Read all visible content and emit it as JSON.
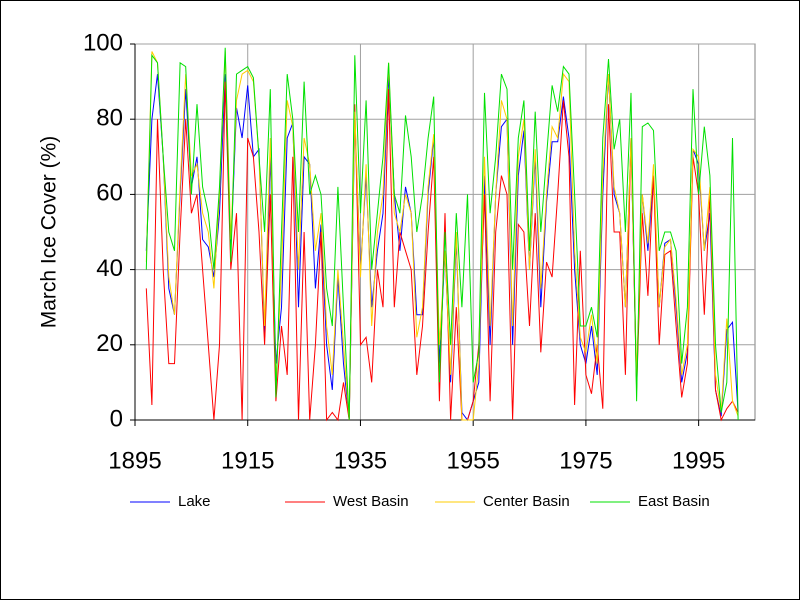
{
  "chart_data": {
    "type": "line",
    "y_label": "March Ice Cover (%)",
    "x": [
      1897,
      1898,
      1899,
      1900,
      1901,
      1902,
      1903,
      1904,
      1905,
      1906,
      1907,
      1908,
      1909,
      1910,
      1911,
      1912,
      1913,
      1914,
      1915,
      1916,
      1917,
      1918,
      1919,
      1920,
      1921,
      1922,
      1923,
      1924,
      1925,
      1926,
      1927,
      1928,
      1929,
      1930,
      1931,
      1932,
      1933,
      1934,
      1935,
      1936,
      1937,
      1938,
      1939,
      1940,
      1941,
      1942,
      1943,
      1944,
      1945,
      1946,
      1947,
      1948,
      1949,
      1950,
      1951,
      1952,
      1953,
      1954,
      1955,
      1956,
      1957,
      1958,
      1959,
      1960,
      1961,
      1962,
      1963,
      1964,
      1965,
      1966,
      1967,
      1968,
      1969,
      1970,
      1971,
      1972,
      1973,
      1974,
      1975,
      1976,
      1977,
      1978,
      1979,
      1980,
      1981,
      1982,
      1983,
      1984,
      1985,
      1986,
      1987,
      1988,
      1989,
      1990,
      1991,
      1992,
      1993,
      1994,
      1995,
      1996,
      1997,
      1998,
      1999,
      2000,
      2001,
      2002
    ],
    "series": [
      {
        "name": "Lake",
        "color": "#0000ff",
        "values": [
          45,
          80,
          92,
          70,
          35,
          28,
          60,
          88,
          62,
          70,
          48,
          46,
          38,
          55,
          92,
          45,
          83,
          75,
          89,
          70,
          72,
          22,
          70,
          15,
          30,
          75,
          79,
          30,
          70,
          68,
          35,
          52,
          20,
          8,
          38,
          15,
          0,
          80,
          40,
          65,
          30,
          45,
          55,
          92,
          60,
          45,
          62,
          55,
          28,
          28,
          60,
          75,
          15,
          45,
          10,
          48,
          2,
          0,
          5,
          10,
          65,
          20,
          60,
          78,
          80,
          20,
          65,
          77,
          40,
          70,
          30,
          58,
          74,
          74,
          86,
          75,
          40,
          20,
          15,
          25,
          12,
          60,
          92,
          60,
          55,
          30,
          75,
          10,
          60,
          45,
          65,
          30,
          47,
          48,
          30,
          10,
          18,
          72,
          68,
          45,
          55,
          8,
          1,
          24,
          26,
          2
        ]
      },
      {
        "name": "West Basin",
        "color": "#ff0000",
        "values": [
          35,
          4,
          80,
          40,
          15,
          15,
          50,
          80,
          55,
          60,
          40,
          20,
          0,
          20,
          90,
          40,
          55,
          0,
          75,
          70,
          50,
          20,
          60,
          5,
          25,
          12,
          70,
          0,
          50,
          0,
          20,
          50,
          0,
          2,
          0,
          10,
          0,
          84,
          20,
          22,
          10,
          40,
          30,
          88,
          30,
          50,
          45,
          40,
          12,
          25,
          50,
          70,
          5,
          55,
          0,
          30,
          0,
          0,
          5,
          20,
          60,
          5,
          50,
          65,
          60,
          0,
          52,
          50,
          25,
          55,
          18,
          42,
          38,
          60,
          85,
          70,
          4,
          45,
          12,
          7,
          20,
          3,
          84,
          50,
          50,
          12,
          75,
          8,
          55,
          33,
          65,
          20,
          44,
          45,
          25,
          6,
          15,
          70,
          60,
          28,
          60,
          8,
          0,
          3,
          5,
          2
        ]
      },
      {
        "name": "Center Basin",
        "color": "#ffcc00",
        "values": [
          42,
          98,
          95,
          70,
          38,
          28,
          62,
          92,
          65,
          68,
          55,
          50,
          35,
          60,
          98,
          48,
          85,
          92,
          93,
          90,
          70,
          25,
          75,
          10,
          40,
          85,
          78,
          40,
          75,
          68,
          45,
          55,
          25,
          12,
          40,
          20,
          0,
          82,
          38,
          68,
          25,
          50,
          60,
          95,
          55,
          50,
          60,
          55,
          22,
          30,
          62,
          76,
          20,
          45,
          12,
          50,
          0,
          0,
          0,
          15,
          70,
          25,
          60,
          85,
          80,
          25,
          70,
          80,
          40,
          72,
          35,
          60,
          78,
          75,
          92,
          90,
          45,
          22,
          18,
          28,
          15,
          65,
          92,
          62,
          55,
          30,
          75,
          12,
          60,
          47,
          68,
          30,
          46,
          48,
          32,
          12,
          20,
          72,
          70,
          45,
          62,
          12,
          2,
          27,
          5,
          1
        ]
      },
      {
        "name": "East Basin",
        "color": "#00e000",
        "values": [
          40,
          97,
          95,
          70,
          50,
          45,
          95,
          94,
          60,
          84,
          62,
          55,
          40,
          62,
          99,
          42,
          92,
          93,
          94,
          91,
          70,
          50,
          88,
          6,
          50,
          92,
          80,
          50,
          90,
          60,
          65,
          60,
          35,
          25,
          62,
          30,
          0,
          97,
          55,
          85,
          40,
          55,
          70,
          95,
          60,
          55,
          81,
          70,
          50,
          60,
          75,
          86,
          10,
          50,
          20,
          55,
          30,
          60,
          10,
          18,
          87,
          55,
          70,
          92,
          88,
          40,
          75,
          85,
          45,
          82,
          50,
          70,
          89,
          82,
          94,
          92,
          60,
          25,
          25,
          30,
          22,
          75,
          96,
          72,
          80,
          50,
          87,
          5,
          78,
          79,
          77,
          45,
          50,
          50,
          45,
          15,
          30,
          88,
          60,
          78,
          65,
          20,
          2,
          10,
          75,
          0
        ]
      }
    ],
    "xlim": [
      1895,
      2005
    ],
    "xticks": [
      1895,
      1915,
      1935,
      1955,
      1975,
      1995
    ],
    "ylim": [
      0,
      100
    ],
    "yticks": [
      0,
      20,
      40,
      60,
      80,
      100
    ],
    "grid": true,
    "legend": "bottom"
  }
}
